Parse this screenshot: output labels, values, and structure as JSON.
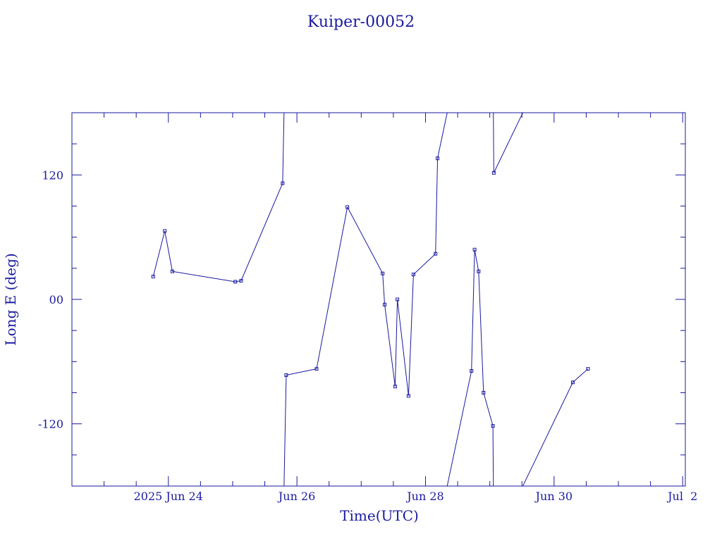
{
  "chart_data": {
    "type": "line",
    "title": "Kuiper-00052",
    "xlabel": "Time(UTC)",
    "ylabel": "Long E (deg)",
    "xlim": [
      "2025-06-22 12:00",
      "2025-07-02 01:00"
    ],
    "ylim": [
      -180,
      180
    ],
    "x_ticks": [
      {
        "x": "2025-06-24",
        "label": "2025 Jun 24"
      },
      {
        "x": "2025-06-26",
        "label": "Jun 26"
      },
      {
        "x": "2025-06-28",
        "label": "Jun 28"
      },
      {
        "x": "2025-06-30",
        "label": "Jun 30"
      },
      {
        "x": "2025-07-02",
        "label": "Jul  2"
      }
    ],
    "y_ticks": [
      {
        "y": 120,
        "label": "120"
      },
      {
        "y": 0,
        "label": "00"
      },
      {
        "y": -120,
        "label": "-120"
      }
    ],
    "grid": false,
    "wrap_longitude": true,
    "series": [
      {
        "points": [
          {
            "x": "2025-06-23 18:20",
            "y": 22
          },
          {
            "x": "2025-06-23 22:40",
            "y": 66
          },
          {
            "x": "2025-06-24 01:30",
            "y": 27
          },
          {
            "x": "2025-06-25 01:00",
            "y": 17
          },
          {
            "x": "2025-06-25 03:10",
            "y": 18
          },
          {
            "x": "2025-06-25 18:40",
            "y": 112
          },
          {
            "x": "2025-06-25 20:00",
            "y": -73
          },
          {
            "x": "2025-06-26 07:20",
            "y": -67
          },
          {
            "x": "2025-06-26 18:50",
            "y": 89
          },
          {
            "x": "2025-06-27 08:00",
            "y": 25
          },
          {
            "x": "2025-06-27 08:45",
            "y": -5
          },
          {
            "x": "2025-06-27 12:40",
            "y": -84
          },
          {
            "x": "2025-06-27 13:30",
            "y": 0
          },
          {
            "x": "2025-06-27 17:40",
            "y": -93
          },
          {
            "x": "2025-06-27 19:30",
            "y": 24
          },
          {
            "x": "2025-06-28 03:45",
            "y": 44
          },
          {
            "x": "2025-06-28 04:30",
            "y": 136
          },
          {
            "x": "2025-06-28 17:10",
            "y": -69
          },
          {
            "x": "2025-06-28 18:20",
            "y": 48
          },
          {
            "x": "2025-06-28 19:50",
            "y": 27
          },
          {
            "x": "2025-06-28 21:40",
            "y": -90
          },
          {
            "x": "2025-06-29 01:10",
            "y": -122
          },
          {
            "x": "2025-06-29 01:30",
            "y": 122
          },
          {
            "x": "2025-06-30 07:00",
            "y": -80
          },
          {
            "x": "2025-06-30 12:40",
            "y": -67
          }
        ]
      }
    ]
  }
}
